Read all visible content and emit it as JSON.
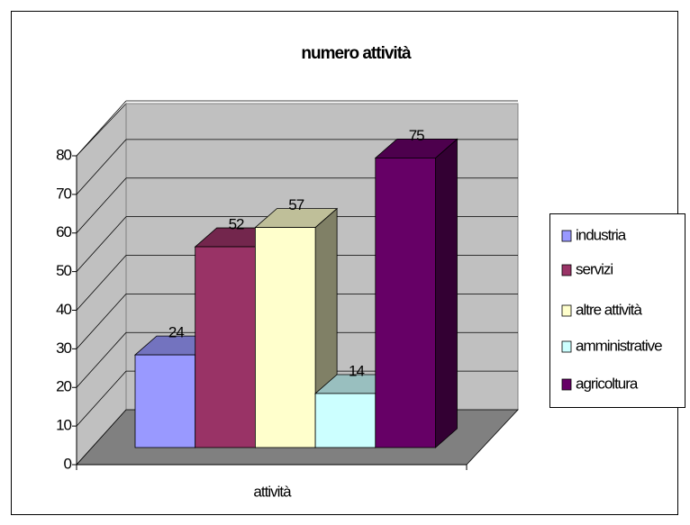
{
  "chart_data": {
    "type": "bar3d",
    "title": "numero attività",
    "categories": [
      "attività"
    ],
    "series": [
      {
        "name": "industria",
        "color": "#9999ff",
        "values": [
          24
        ]
      },
      {
        "name": "servizi",
        "color": "#993366",
        "values": [
          52
        ]
      },
      {
        "name": "altre attività",
        "color": "#ffffcc",
        "values": [
          57
        ]
      },
      {
        "name": "amministrative",
        "color": "#ccffff",
        "values": [
          14
        ]
      },
      {
        "name": "agricoltura",
        "color": "#660066",
        "values": [
          75
        ]
      }
    ],
    "ylim": [
      0,
      80
    ],
    "yticks": [
      0,
      10,
      20,
      30,
      40,
      50,
      60,
      70,
      80
    ],
    "grid": true,
    "legend": "right"
  }
}
